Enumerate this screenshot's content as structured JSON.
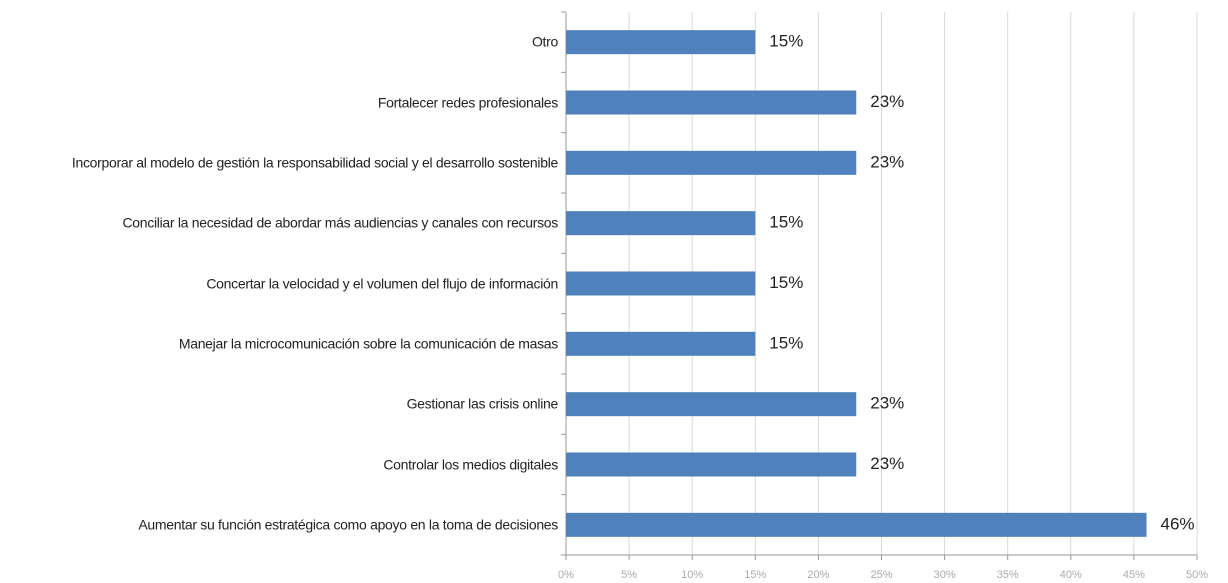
{
  "chart_data": {
    "type": "bar",
    "orientation": "horizontal",
    "categories": [
      "Otro",
      "Fortalecer redes profesionales",
      "Incorporar al modelo de gestión la responsabilidad social y el desarrollo sostenible",
      "Conciliar la necesidad de abordar más audiencias y canales con recursos",
      "Concertar la velocidad y el volumen del flujo de información",
      "Manejar la microcomunicación sobre la comunicación de masas",
      "Gestionar las crisis online",
      "Controlar los medios digitales",
      "Aumentar su función estratégica como apoyo en la toma de decisiones"
    ],
    "values": [
      15,
      23,
      23,
      15,
      15,
      15,
      23,
      23,
      46
    ],
    "value_labels": [
      "15%",
      "23%",
      "23%",
      "15%",
      "15%",
      "15%",
      "23%",
      "23%",
      "46%"
    ],
    "color": "#4f81bd",
    "xlim": [
      0,
      50
    ],
    "xticks": [
      {
        "value": 0,
        "label": "0%"
      },
      {
        "value": 5,
        "label": "5%"
      },
      {
        "value": 10,
        "label": "10%"
      },
      {
        "value": 15,
        "label": "15%"
      },
      {
        "value": 20,
        "label": "20%"
      },
      {
        "value": 25,
        "label": "25%"
      },
      {
        "value": 30,
        "label": "30%"
      },
      {
        "value": 35,
        "label": "35%"
      },
      {
        "value": 40,
        "label": "40%"
      },
      {
        "value": 45,
        "label": "45%"
      },
      {
        "value": 50,
        "label": "50%"
      }
    ],
    "grid": true
  }
}
